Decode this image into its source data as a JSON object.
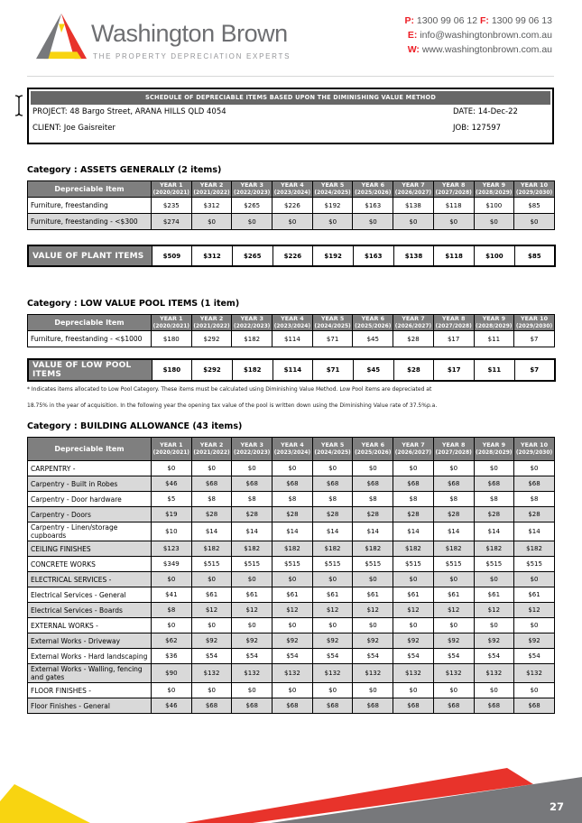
{
  "header": {
    "brand": "Washington Brown",
    "tagline": "THE PROPERTY DEPRECIATION EXPERTS",
    "phone_label": "P:",
    "phone": "1300 99 06 12",
    "fax_label": "F:",
    "fax": "1300 99 06 13",
    "email_label": "E:",
    "email": "info@washingtonbrown.com.au",
    "web_label": "W:",
    "web": "www.washingtonbrown.com.au"
  },
  "info": {
    "title": "SCHEDULE OF DEPRECIABLE ITEMS BASED UPON THE DIMINISHING VALUE METHOD",
    "project_label": "PROJECT:",
    "project": "48 Bargo Street, ARANA HILLS QLD 4054",
    "date_label": "DATE:",
    "date": "14-Dec-22",
    "client_label": "CLIENT:",
    "client": "Joe Gaisreiter",
    "job_label": "JOB:",
    "job": "127597"
  },
  "labels": {
    "depreciable_item": "Depreciable Item"
  },
  "years": [
    {
      "label": "YEAR 1",
      "range": "(2020/2021)"
    },
    {
      "label": "YEAR 2",
      "range": "(2021/2022)"
    },
    {
      "label": "YEAR 3",
      "range": "(2022/2023)"
    },
    {
      "label": "YEAR 4",
      "range": "(2023/2024)"
    },
    {
      "label": "YEAR 5",
      "range": "(2024/2025)"
    },
    {
      "label": "YEAR 6",
      "range": "(2025/2026)"
    },
    {
      "label": "YEAR 7",
      "range": "(2026/2027)"
    },
    {
      "label": "YEAR 8",
      "range": "(2027/2028)"
    },
    {
      "label": "YEAR 9",
      "range": "(2028/2029)"
    },
    {
      "label": "YEAR 10",
      "range": "(2029/2030)"
    }
  ],
  "sections": [
    {
      "heading": "Category : ASSETS GENERALLY (2 items)",
      "rows": [
        {
          "item": "Furniture, freestanding",
          "values": [
            "$235",
            "$312",
            "$265",
            "$226",
            "$192",
            "$163",
            "$138",
            "$118",
            "$100",
            "$85"
          ]
        },
        {
          "item": "Furniture, freestanding - <$300",
          "values": [
            "$274",
            "$0",
            "$0",
            "$0",
            "$0",
            "$0",
            "$0",
            "$0",
            "$0",
            "$0"
          ]
        }
      ],
      "total_label": "VALUE OF PLANT ITEMS",
      "total_values": [
        "$509",
        "$312",
        "$265",
        "$226",
        "$192",
        "$163",
        "$138",
        "$118",
        "$100",
        "$85"
      ]
    },
    {
      "heading": "Category : LOW VALUE POOL ITEMS (1 item)",
      "rows": [
        {
          "item": "Furniture, freestanding - <$1000",
          "values": [
            "$180",
            "$292",
            "$182",
            "$114",
            "$71",
            "$45",
            "$28",
            "$17",
            "$11",
            "$7"
          ]
        }
      ],
      "total_label": "VALUE OF LOW POOL ITEMS",
      "total_values": [
        "$180",
        "$292",
        "$182",
        "$114",
        "$71",
        "$45",
        "$28",
        "$17",
        "$11",
        "$7"
      ],
      "footnotes": [
        "* Indicates items allocated to Low Pool Category. These items must be calculated using Diminishing Value Method. Low Pool items are depreciated at",
        "18.75% in the year of acquisition. In the following year the opening tax value of the pool is written down using the Diminishing Value rate of 37.5%p.a."
      ]
    },
    {
      "heading": "Category : BUILDING ALLOWANCE (43 items)",
      "rows": [
        {
          "item": "CARPENTRY  -",
          "values": [
            "$0",
            "$0",
            "$0",
            "$0",
            "$0",
            "$0",
            "$0",
            "$0",
            "$0",
            "$0"
          ]
        },
        {
          "item": "Carpentry - Built in Robes",
          "values": [
            "$46",
            "$68",
            "$68",
            "$68",
            "$68",
            "$68",
            "$68",
            "$68",
            "$68",
            "$68"
          ]
        },
        {
          "item": "Carpentry - Door hardware",
          "values": [
            "$5",
            "$8",
            "$8",
            "$8",
            "$8",
            "$8",
            "$8",
            "$8",
            "$8",
            "$8"
          ]
        },
        {
          "item": "Carpentry - Doors",
          "values": [
            "$19",
            "$28",
            "$28",
            "$28",
            "$28",
            "$28",
            "$28",
            "$28",
            "$28",
            "$28"
          ]
        },
        {
          "item": "Carpentry - Linen/storage cupboards",
          "values": [
            "$10",
            "$14",
            "$14",
            "$14",
            "$14",
            "$14",
            "$14",
            "$14",
            "$14",
            "$14"
          ]
        },
        {
          "item": "CEILING FINISHES",
          "values": [
            "$123",
            "$182",
            "$182",
            "$182",
            "$182",
            "$182",
            "$182",
            "$182",
            "$182",
            "$182"
          ]
        },
        {
          "item": "CONCRETE WORKS",
          "values": [
            "$349",
            "$515",
            "$515",
            "$515",
            "$515",
            "$515",
            "$515",
            "$515",
            "$515",
            "$515"
          ]
        },
        {
          "item": "ELECTRICAL SERVICES  -",
          "values": [
            "$0",
            "$0",
            "$0",
            "$0",
            "$0",
            "$0",
            "$0",
            "$0",
            "$0",
            "$0"
          ]
        },
        {
          "item": "Electrical Services -  General",
          "values": [
            "$41",
            "$61",
            "$61",
            "$61",
            "$61",
            "$61",
            "$61",
            "$61",
            "$61",
            "$61"
          ]
        },
        {
          "item": "Electrical Services - Boards",
          "values": [
            "$8",
            "$12",
            "$12",
            "$12",
            "$12",
            "$12",
            "$12",
            "$12",
            "$12",
            "$12"
          ]
        },
        {
          "item": "EXTERNAL WORKS  -",
          "values": [
            "$0",
            "$0",
            "$0",
            "$0",
            "$0",
            "$0",
            "$0",
            "$0",
            "$0",
            "$0"
          ]
        },
        {
          "item": "External Works - Driveway",
          "values": [
            "$62",
            "$92",
            "$92",
            "$92",
            "$92",
            "$92",
            "$92",
            "$92",
            "$92",
            "$92"
          ]
        },
        {
          "item": "External Works - Hard landscaping",
          "values": [
            "$36",
            "$54",
            "$54",
            "$54",
            "$54",
            "$54",
            "$54",
            "$54",
            "$54",
            "$54"
          ]
        },
        {
          "item": "External Works - Walling, fencing and gates",
          "values": [
            "$90",
            "$132",
            "$132",
            "$132",
            "$132",
            "$132",
            "$132",
            "$132",
            "$132",
            "$132"
          ]
        },
        {
          "item": "FLOOR FINISHES  -",
          "values": [
            "$0",
            "$0",
            "$0",
            "$0",
            "$0",
            "$0",
            "$0",
            "$0",
            "$0",
            "$0"
          ]
        },
        {
          "item": "Floor Finishes -  General",
          "values": [
            "$46",
            "$68",
            "$68",
            "$68",
            "$68",
            "$68",
            "$68",
            "$68",
            "$68",
            "$68"
          ]
        }
      ]
    }
  ],
  "footer": {
    "page": "27"
  },
  "colors": {
    "accent_red": "#ed1c24",
    "logo_red": "#e8332b",
    "logo_yellow": "#f8d411",
    "logo_gray": "#77787b",
    "table_header_gray": "#7f7f7f",
    "row_stripe_gray": "#d9d9d9",
    "title_bar_gray": "#676767",
    "footer_gray": "#77787b",
    "footer_yellow": "#f8d411",
    "footer_red": "#e8332b"
  }
}
